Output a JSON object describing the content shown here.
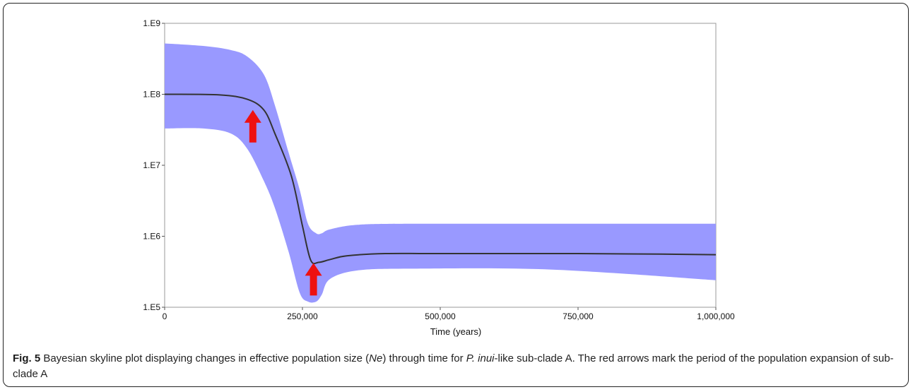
{
  "chart_data": {
    "type": "area",
    "xlabel": "Time (years)",
    "ylabel": "",
    "y_scale": "log",
    "xlim": [
      0,
      1000000
    ],
    "ylim": [
      100000,
      1000000000
    ],
    "x_ticks": [
      0,
      250000,
      500000,
      750000,
      1000000
    ],
    "x_tick_labels": [
      "0",
      "250,000",
      "500,000",
      "750,000",
      "1,000,000"
    ],
    "y_ticks": [
      100000,
      1000000,
      10000000,
      100000000,
      1000000000
    ],
    "y_tick_labels": [
      "1.E5",
      "1.E6",
      "1.E7",
      "1.E8",
      "1.E9"
    ],
    "series": [
      {
        "role": "median",
        "color": "#333333",
        "x": [
          0,
          100000,
          150000,
          180000,
          200000,
          230000,
          250000,
          265000,
          280000,
          300000,
          330000,
          400000,
          500000,
          750000,
          900000,
          1000000
        ],
        "y": [
          100000000,
          98000000,
          85000000,
          60000000,
          28000000,
          7000000,
          1400000,
          460000,
          430000,
          470000,
          530000,
          570000,
          570000,
          570000,
          560000,
          550000
        ]
      },
      {
        "role": "95% HPD interval",
        "color": "#9999ff",
        "x": [
          0,
          70000,
          120000,
          150000,
          180000,
          200000,
          225000,
          245000,
          260000,
          275000,
          285000,
          300000,
          350000,
          450000,
          700000,
          1000000
        ],
        "upper": [
          520000000,
          480000000,
          420000000,
          340000000,
          190000000,
          70000000,
          15000000,
          4500000,
          1500000,
          1100000,
          1100000,
          1250000,
          1450000,
          1500000,
          1500000,
          1500000
        ],
        "lower": [
          33000000,
          33000000,
          28000000,
          17000000,
          6000000,
          2500000,
          600000,
          160000,
          120000,
          120000,
          150000,
          250000,
          330000,
          350000,
          340000,
          240000
        ]
      }
    ],
    "annotations": [
      {
        "type": "arrow",
        "color": "#ee1111",
        "x": 160000,
        "y": 60000000,
        "direction": "up"
      },
      {
        "type": "arrow",
        "color": "#ee1111",
        "x": 270000,
        "y": 420000,
        "direction": "up"
      }
    ]
  },
  "caption": {
    "label": "Fig. 5",
    "text_before": " Bayesian skyline plot displaying changes in effective population size (",
    "ne": "Ne",
    "text_middle": ") through time for ",
    "species": "P. inui",
    "text_after": "-like sub-clade A. The red arrows mark the period of the population expansion of sub-clade A"
  }
}
